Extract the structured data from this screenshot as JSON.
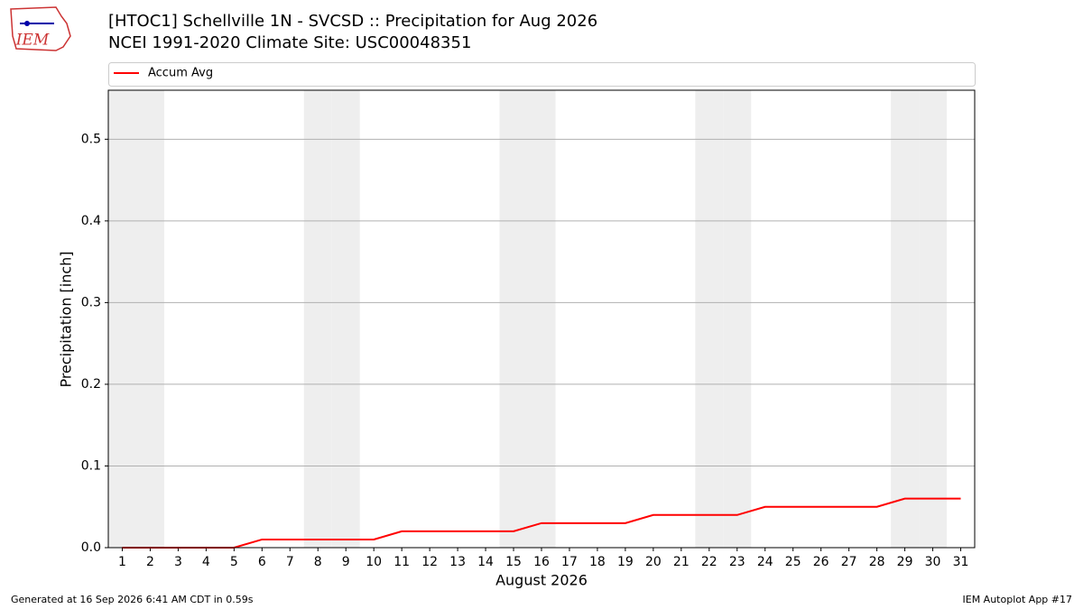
{
  "chart_data": {
    "type": "line",
    "title": "[HTOC1] Schellville 1N - SVCSD :: Precipitation for Aug 2026",
    "subtitle": "NCEI 1991-2020 Climate Site: USC00048351",
    "logo_text": "IEM",
    "x_label": "August 2026",
    "y_label": "Precipitation [inch]",
    "x": [
      1,
      2,
      3,
      4,
      5,
      6,
      7,
      8,
      9,
      10,
      11,
      12,
      13,
      14,
      15,
      16,
      17,
      18,
      19,
      20,
      21,
      22,
      23,
      24,
      25,
      26,
      27,
      28,
      29,
      30,
      31
    ],
    "series": [
      {
        "name": "Accum Avg",
        "color": "#ff0000",
        "values": [
          0,
          0,
          0,
          0,
          0,
          0.01,
          0.01,
          0.01,
          0.01,
          0.01,
          0.02,
          0.02,
          0.02,
          0.02,
          0.02,
          0.03,
          0.03,
          0.03,
          0.03,
          0.04,
          0.04,
          0.04,
          0.04,
          0.05,
          0.05,
          0.05,
          0.05,
          0.05,
          0.06,
          0.06,
          0.06
        ]
      }
    ],
    "shaded_days": [
      1,
      2,
      8,
      9,
      15,
      16,
      22,
      23,
      29,
      30
    ],
    "xlim": [
      0.5,
      31.5
    ],
    "ylim": [
      0,
      0.56
    ],
    "xticks": [
      1,
      2,
      3,
      4,
      5,
      6,
      7,
      8,
      9,
      10,
      11,
      12,
      13,
      14,
      15,
      16,
      17,
      18,
      19,
      20,
      21,
      22,
      23,
      24,
      25,
      26,
      27,
      28,
      29,
      30,
      31
    ],
    "yticks": [
      {
        "value": 0,
        "label": "0.0"
      },
      0.1,
      0.2,
      0.3,
      0.4,
      0.5
    ],
    "grid": true,
    "legend": "top",
    "footer_left": "Generated at 16 Sep 2026 6:41 AM CDT in 0.59s",
    "footer_right": "IEM Autoplot App #17"
  }
}
